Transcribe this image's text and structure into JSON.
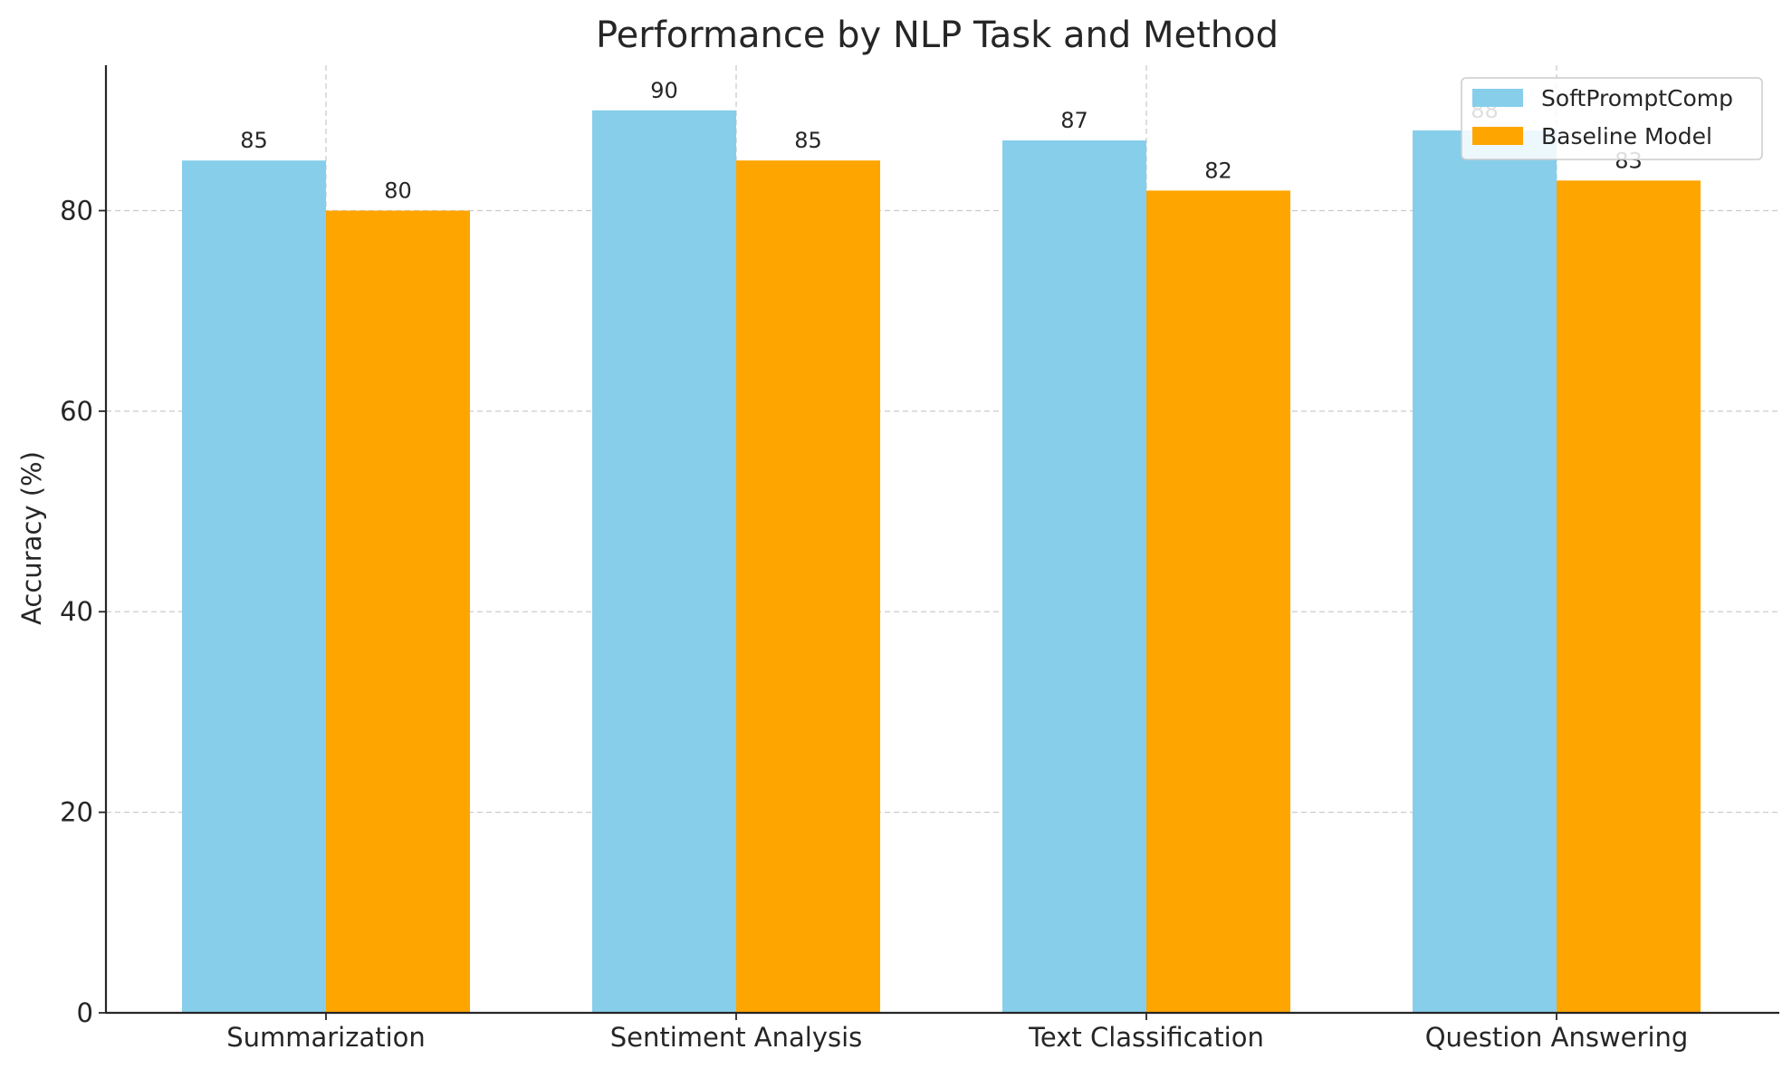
{
  "chart_data": {
    "type": "bar",
    "title": "Performance by NLP Task and Method",
    "xlabel": "",
    "ylabel": "Accuracy (%)",
    "categories": [
      "Summarization",
      "Sentiment Analysis",
      "Text Classification",
      "Question Answering"
    ],
    "series": [
      {
        "name": "SoftPromptComp",
        "values": [
          85,
          90,
          87,
          88
        ],
        "color": "#87CEEB"
      },
      {
        "name": "Baseline Model",
        "values": [
          80,
          85,
          82,
          83
        ],
        "color": "#FFA500"
      }
    ],
    "ylim": [
      0,
      94.5
    ],
    "yticks": [
      0,
      20,
      40,
      60,
      80
    ],
    "grid": true,
    "legend": "top-right"
  }
}
